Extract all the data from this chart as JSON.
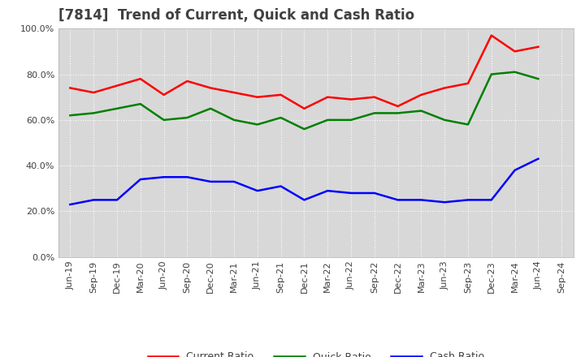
{
  "title": "[7814]  Trend of Current, Quick and Cash Ratio",
  "x_labels": [
    "Jun-19",
    "Sep-19",
    "Dec-19",
    "Mar-20",
    "Jun-20",
    "Sep-20",
    "Dec-20",
    "Mar-21",
    "Jun-21",
    "Sep-21",
    "Dec-21",
    "Mar-22",
    "Jun-22",
    "Sep-22",
    "Dec-22",
    "Mar-23",
    "Jun-23",
    "Sep-23",
    "Dec-23",
    "Mar-24",
    "Jun-24",
    "Sep-24"
  ],
  "current_ratio": [
    74.0,
    72.0,
    75.0,
    78.0,
    71.0,
    77.0,
    74.0,
    72.0,
    70.0,
    71.0,
    65.0,
    70.0,
    69.0,
    70.0,
    66.0,
    71.0,
    74.0,
    76.0,
    97.0,
    90.0,
    92.0,
    null
  ],
  "quick_ratio": [
    62.0,
    63.0,
    65.0,
    67.0,
    60.0,
    61.0,
    65.0,
    60.0,
    58.0,
    61.0,
    56.0,
    60.0,
    60.0,
    63.0,
    63.0,
    64.0,
    60.0,
    58.0,
    80.0,
    81.0,
    78.0,
    null
  ],
  "cash_ratio": [
    23.0,
    25.0,
    25.0,
    34.0,
    35.0,
    35.0,
    33.0,
    33.0,
    29.0,
    31.0,
    25.0,
    29.0,
    28.0,
    28.0,
    25.0,
    25.0,
    24.0,
    25.0,
    25.0,
    38.0,
    43.0,
    null
  ],
  "current_color": "#FF0000",
  "quick_color": "#008000",
  "cash_color": "#0000FF",
  "ylim": [
    0,
    100
  ],
  "yticks": [
    0,
    20,
    40,
    60,
    80,
    100
  ],
  "plot_bg_color": "#D8D8D8",
  "fig_bg_color": "#FFFFFF",
  "grid_color": "#FFFFFF",
  "title_fontsize": 12,
  "legend_fontsize": 9,
  "tick_fontsize": 8,
  "line_width": 1.8
}
